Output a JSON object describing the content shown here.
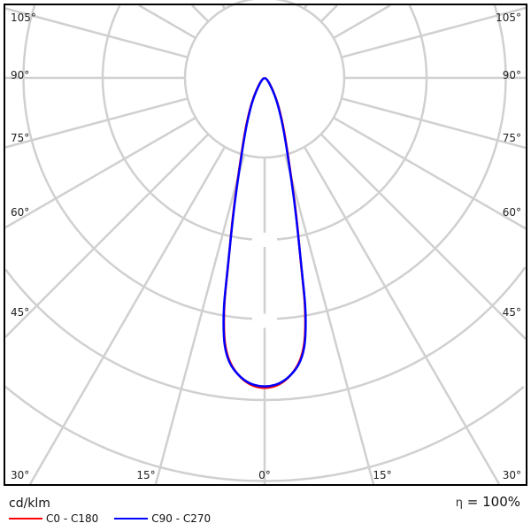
{
  "chart_data": {
    "type": "polar-line",
    "unit_label": "cd/klm",
    "efficiency_symbol": "η",
    "efficiency_value": "= 100%",
    "angle_labels_left": [
      "105°",
      "90°",
      "75°",
      "60°",
      "45°",
      "30°"
    ],
    "angle_labels_right": [
      "105°",
      "90°",
      "75°",
      "60°",
      "45°",
      "30°"
    ],
    "angle_labels_bottom": [
      "30°",
      "15°",
      "0°",
      "15°",
      "30°"
    ],
    "angular_grid_step_deg": 15,
    "radial_rings_unlabeled": 5,
    "grid": true,
    "legend_placement": "bottom-left",
    "angles_deg": [
      0,
      4,
      8,
      10,
      11,
      13,
      15,
      20,
      25,
      30,
      40,
      60,
      90
    ],
    "series": [
      {
        "name": "C0 - C180",
        "color": "#ff0000",
        "values": [
          3.85,
          3.77,
          3.48,
          2.95,
          2.36,
          1.75,
          1.27,
          0.72,
          0.44,
          0.27,
          0.11,
          0.03,
          0
        ]
      },
      {
        "name": "C90 - C270",
        "color": "#0000ff",
        "values": [
          3.83,
          3.76,
          3.5,
          2.98,
          2.38,
          1.72,
          1.25,
          0.7,
          0.42,
          0.26,
          0.1,
          0.03,
          0
        ]
      }
    ]
  }
}
